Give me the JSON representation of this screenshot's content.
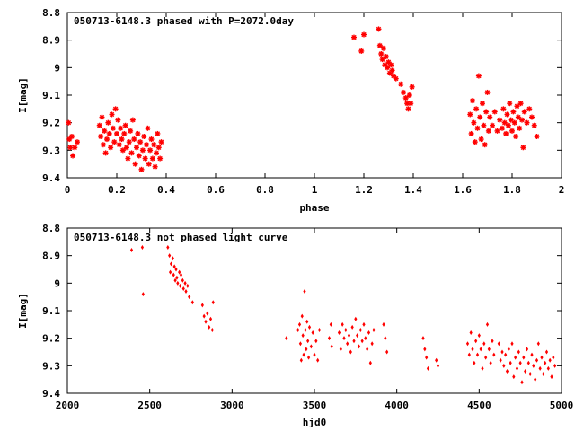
{
  "chart_data": [
    {
      "type": "scatter",
      "title": "050713-6148.3 phased with P=2072.0day",
      "xlabel": "phase",
      "ylabel": "I[mag]",
      "xlim": [
        0,
        2
      ],
      "ylim": [
        9.4,
        8.8
      ],
      "y_inverted": true,
      "xticks": [
        "0",
        "0.2",
        "0.4",
        "0.6",
        "0.8",
        "1",
        "1.2",
        "1.4",
        "1.6",
        "1.8",
        "2"
      ],
      "yticks": [
        "8.8",
        "8.9",
        "9",
        "9.1",
        "9.2",
        "9.3",
        "9.4"
      ],
      "grid": false,
      "color": "#ff0000",
      "marker": "star",
      "series": [
        {
          "points": [
            [
              0.005,
              9.2
            ],
            [
              0.008,
              9.26
            ],
            [
              0.012,
              9.29
            ],
            [
              0.018,
              9.25
            ],
            [
              0.022,
              9.32
            ],
            [
              0.03,
              9.29
            ],
            [
              0.04,
              9.27
            ],
            [
              0.13,
              9.21
            ],
            [
              0.135,
              9.25
            ],
            [
              0.14,
              9.18
            ],
            [
              0.145,
              9.28
            ],
            [
              0.15,
              9.23
            ],
            [
              0.155,
              9.31
            ],
            [
              0.16,
              9.26
            ],
            [
              0.165,
              9.2
            ],
            [
              0.17,
              9.24
            ],
            [
              0.175,
              9.29
            ],
            [
              0.18,
              9.17
            ],
            [
              0.185,
              9.22
            ],
            [
              0.19,
              9.27
            ],
            [
              0.195,
              9.15
            ],
            [
              0.2,
              9.24
            ],
            [
              0.205,
              9.19
            ],
            [
              0.21,
              9.28
            ],
            [
              0.215,
              9.22
            ],
            [
              0.22,
              9.26
            ],
            [
              0.225,
              9.3
            ],
            [
              0.23,
              9.24
            ],
            [
              0.235,
              9.21
            ],
            [
              0.24,
              9.29
            ],
            [
              0.245,
              9.33
            ],
            [
              0.25,
              9.27
            ],
            [
              0.255,
              9.23
            ],
            [
              0.26,
              9.31
            ],
            [
              0.265,
              9.19
            ],
            [
              0.27,
              9.26
            ],
            [
              0.275,
              9.35
            ],
            [
              0.28,
              9.29
            ],
            [
              0.285,
              9.24
            ],
            [
              0.29,
              9.32
            ],
            [
              0.295,
              9.27
            ],
            [
              0.3,
              9.37
            ],
            [
              0.305,
              9.3
            ],
            [
              0.31,
              9.25
            ],
            [
              0.315,
              9.33
            ],
            [
              0.32,
              9.28
            ],
            [
              0.325,
              9.22
            ],
            [
              0.33,
              9.35
            ],
            [
              0.335,
              9.3
            ],
            [
              0.34,
              9.26
            ],
            [
              0.345,
              9.33
            ],
            [
              0.35,
              9.28
            ],
            [
              0.355,
              9.36
            ],
            [
              0.36,
              9.31
            ],
            [
              0.365,
              9.24
            ],
            [
              0.37,
              9.29
            ],
            [
              0.375,
              9.33
            ],
            [
              0.38,
              9.27
            ],
            [
              1.16,
              8.89
            ],
            [
              1.19,
              8.94
            ],
            [
              1.2,
              8.88
            ],
            [
              1.26,
              8.86
            ],
            [
              1.265,
              8.92
            ],
            [
              1.27,
              8.95
            ],
            [
              1.275,
              8.97
            ],
            [
              1.28,
              8.93
            ],
            [
              1.285,
              8.99
            ],
            [
              1.29,
              8.96
            ],
            [
              1.295,
              9.0
            ],
            [
              1.3,
              8.98
            ],
            [
              1.305,
              9.02
            ],
            [
              1.31,
              8.99
            ],
            [
              1.315,
              9.01
            ],
            [
              1.32,
              9.03
            ],
            [
              1.33,
              9.04
            ],
            [
              1.35,
              9.06
            ],
            [
              1.36,
              9.09
            ],
            [
              1.37,
              9.11
            ],
            [
              1.375,
              9.13
            ],
            [
              1.38,
              9.15
            ],
            [
              1.385,
              9.1
            ],
            [
              1.39,
              9.13
            ],
            [
              1.395,
              9.07
            ],
            [
              1.63,
              9.17
            ],
            [
              1.635,
              9.24
            ],
            [
              1.64,
              9.12
            ],
            [
              1.645,
              9.2
            ],
            [
              1.65,
              9.27
            ],
            [
              1.655,
              9.15
            ],
            [
              1.66,
              9.22
            ],
            [
              1.665,
              9.03
            ],
            [
              1.67,
              9.18
            ],
            [
              1.675,
              9.26
            ],
            [
              1.68,
              9.13
            ],
            [
              1.685,
              9.21
            ],
            [
              1.69,
              9.28
            ],
            [
              1.695,
              9.16
            ],
            [
              1.7,
              9.09
            ],
            [
              1.705,
              9.23
            ],
            [
              1.71,
              9.18
            ],
            [
              1.72,
              9.21
            ],
            [
              1.73,
              9.16
            ],
            [
              1.74,
              9.23
            ],
            [
              1.75,
              9.19
            ],
            [
              1.76,
              9.22
            ],
            [
              1.765,
              9.15
            ],
            [
              1.77,
              9.2
            ],
            [
              1.775,
              9.24
            ],
            [
              1.78,
              9.17
            ],
            [
              1.785,
              9.21
            ],
            [
              1.79,
              9.13
            ],
            [
              1.795,
              9.19
            ],
            [
              1.8,
              9.23
            ],
            [
              1.805,
              9.16
            ],
            [
              1.81,
              9.2
            ],
            [
              1.815,
              9.25
            ],
            [
              1.82,
              9.14
            ],
            [
              1.825,
              9.18
            ],
            [
              1.83,
              9.22
            ],
            [
              1.835,
              9.13
            ],
            [
              1.84,
              9.19
            ],
            [
              1.845,
              9.29
            ],
            [
              1.85,
              9.16
            ],
            [
              1.86,
              9.2
            ],
            [
              1.87,
              9.15
            ],
            [
              1.88,
              9.18
            ],
            [
              1.89,
              9.21
            ],
            [
              1.9,
              9.25
            ]
          ]
        }
      ]
    },
    {
      "type": "scatter",
      "title": "050713-6148.3 not phased light curve",
      "xlabel": "hjd0",
      "ylabel": "I[mag]",
      "xlim": [
        2000,
        5000
      ],
      "ylim": [
        9.4,
        8.8
      ],
      "y_inverted": true,
      "xticks": [
        "2000",
        "2500",
        "3000",
        "3500",
        "4000",
        "4500",
        "5000"
      ],
      "yticks": [
        "8.8",
        "8.9",
        "9",
        "9.1",
        "9.2",
        "9.3",
        "9.4"
      ],
      "grid": false,
      "color": "#ff0000",
      "marker": "diamond",
      "series": [
        {
          "points": [
            [
              2390,
              8.88
            ],
            [
              2455,
              8.87
            ],
            [
              2460,
              9.04
            ],
            [
              2610,
              8.87
            ],
            [
              2620,
              8.9
            ],
            [
              2625,
              8.96
            ],
            [
              2630,
              8.93
            ],
            [
              2640,
              8.91
            ],
            [
              2645,
              8.97
            ],
            [
              2650,
              8.94
            ],
            [
              2655,
              8.99
            ],
            [
              2660,
              8.95
            ],
            [
              2665,
              8.98
            ],
            [
              2670,
              9.0
            ],
            [
              2680,
              8.96
            ],
            [
              2685,
              9.01
            ],
            [
              2690,
              8.97
            ],
            [
              2700,
              8.99
            ],
            [
              2705,
              9.02
            ],
            [
              2715,
              9.0
            ],
            [
              2720,
              9.03
            ],
            [
              2730,
              9.01
            ],
            [
              2740,
              9.05
            ],
            [
              2760,
              9.07
            ],
            [
              2820,
              9.08
            ],
            [
              2830,
              9.12
            ],
            [
              2840,
              9.14
            ],
            [
              2850,
              9.11
            ],
            [
              2860,
              9.16
            ],
            [
              2870,
              9.13
            ],
            [
              2880,
              9.17
            ],
            [
              2885,
              9.07
            ],
            [
              3330,
              9.2
            ],
            [
              3400,
              9.17
            ],
            [
              3410,
              9.15
            ],
            [
              3415,
              9.22
            ],
            [
              3420,
              9.28
            ],
            [
              3425,
              9.12
            ],
            [
              3430,
              9.19
            ],
            [
              3435,
              9.26
            ],
            [
              3440,
              9.03
            ],
            [
              3445,
              9.17
            ],
            [
              3450,
              9.24
            ],
            [
              3455,
              9.14
            ],
            [
              3460,
              9.21
            ],
            [
              3465,
              9.27
            ],
            [
              3470,
              9.16
            ],
            [
              3480,
              9.23
            ],
            [
              3490,
              9.18
            ],
            [
              3500,
              9.26
            ],
            [
              3510,
              9.21
            ],
            [
              3520,
              9.28
            ],
            [
              3530,
              9.17
            ],
            [
              3590,
              9.2
            ],
            [
              3600,
              9.15
            ],
            [
              3605,
              9.23
            ],
            [
              3650,
              9.18
            ],
            [
              3660,
              9.24
            ],
            [
              3670,
              9.15
            ],
            [
              3680,
              9.2
            ],
            [
              3690,
              9.17
            ],
            [
              3700,
              9.22
            ],
            [
              3710,
              9.19
            ],
            [
              3720,
              9.25
            ],
            [
              3730,
              9.16
            ],
            [
              3740,
              9.21
            ],
            [
              3750,
              9.13
            ],
            [
              3760,
              9.19
            ],
            [
              3770,
              9.23
            ],
            [
              3780,
              9.17
            ],
            [
              3790,
              9.21
            ],
            [
              3800,
              9.15
            ],
            [
              3810,
              9.2
            ],
            [
              3820,
              9.24
            ],
            [
              3830,
              9.18
            ],
            [
              3840,
              9.29
            ],
            [
              3850,
              9.22
            ],
            [
              3860,
              9.17
            ],
            [
              3920,
              9.15
            ],
            [
              3930,
              9.2
            ],
            [
              3940,
              9.25
            ],
            [
              4160,
              9.2
            ],
            [
              4170,
              9.24
            ],
            [
              4180,
              9.27
            ],
            [
              4190,
              9.31
            ],
            [
              4240,
              9.28
            ],
            [
              4250,
              9.3
            ],
            [
              4430,
              9.22
            ],
            [
              4440,
              9.26
            ],
            [
              4450,
              9.18
            ],
            [
              4460,
              9.24
            ],
            [
              4470,
              9.29
            ],
            [
              4480,
              9.21
            ],
            [
              4490,
              9.26
            ],
            [
              4500,
              9.19
            ],
            [
              4510,
              9.24
            ],
            [
              4520,
              9.31
            ],
            [
              4530,
              9.22
            ],
            [
              4540,
              9.27
            ],
            [
              4550,
              9.15
            ],
            [
              4560,
              9.24
            ],
            [
              4570,
              9.29
            ],
            [
              4580,
              9.21
            ],
            [
              4590,
              9.26
            ],
            [
              4620,
              9.22
            ],
            [
              4630,
              9.28
            ],
            [
              4640,
              9.25
            ],
            [
              4650,
              9.3
            ],
            [
              4660,
              9.26
            ],
            [
              4670,
              9.32
            ],
            [
              4680,
              9.24
            ],
            [
              4690,
              9.29
            ],
            [
              4700,
              9.22
            ],
            [
              4710,
              9.34
            ],
            [
              4720,
              9.27
            ],
            [
              4730,
              9.31
            ],
            [
              4740,
              9.25
            ],
            [
              4750,
              9.29
            ],
            [
              4760,
              9.36
            ],
            [
              4770,
              9.27
            ],
            [
              4780,
              9.32
            ],
            [
              4790,
              9.24
            ],
            [
              4800,
              9.29
            ],
            [
              4810,
              9.33
            ],
            [
              4820,
              9.26
            ],
            [
              4830,
              9.3
            ],
            [
              4840,
              9.35
            ],
            [
              4850,
              9.28
            ],
            [
              4860,
              9.22
            ],
            [
              4870,
              9.31
            ],
            [
              4880,
              9.27
            ],
            [
              4890,
              9.33
            ],
            [
              4900,
              9.29
            ],
            [
              4910,
              9.25
            ],
            [
              4920,
              9.31
            ],
            [
              4930,
              9.28
            ],
            [
              4940,
              9.34
            ],
            [
              4950,
              9.27
            ],
            [
              4960,
              9.3
            ]
          ]
        }
      ]
    }
  ]
}
